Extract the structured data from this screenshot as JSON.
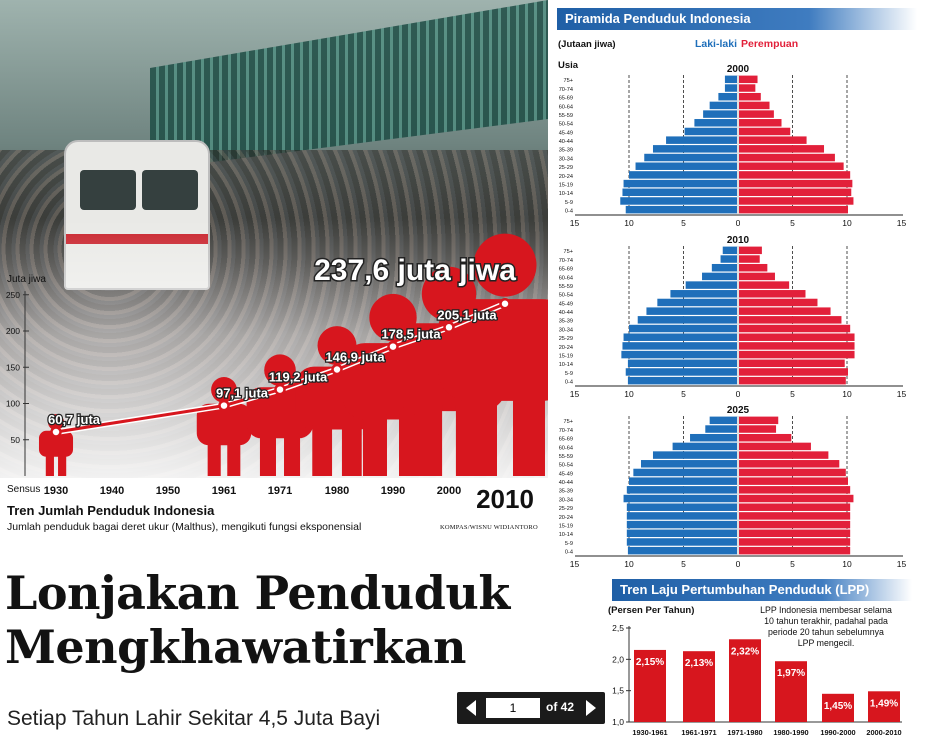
{
  "trend": {
    "total_label": "237,6 juta jiwa",
    "y_axis_label": "Juta jiwa",
    "x_axis_label": "Sensus",
    "title": "Tren Jumlah Penduduk Indonesia",
    "subtitle": "Jumlah penduduk bagai deret ukur (Malthus), mengikuti fungsi eksponensial",
    "credit": "KOMPAS/WISNU WIDIANTORO"
  },
  "headline": {
    "line1": "Lonjakan Penduduk",
    "line2": "Mengkhawatirkan",
    "deck": "Setiap Tahun Lahir Sekitar 4,5 Juta Bayi"
  },
  "pager": {
    "current": "1",
    "of_label": "of 42"
  },
  "pyramid": {
    "title": "Piramida Penduduk Indonesia",
    "unit": "(Jutaan jiwa)",
    "male_label": "Laki-laki",
    "female_label": "Perempuan",
    "age_label": "Usia"
  },
  "lpp": {
    "title": "Tren Laju Pertumbuhan Penduduk (LPP)",
    "unit": "(Persen Per Tahun)",
    "note": [
      "LPP Indonesia membesar selama",
      "10 tahun terakhir, padahal pada",
      "periode 20 tahun sebelumnya",
      "LPP mengecil."
    ]
  },
  "colors": {
    "red": "#d7161e",
    "blue": "#1f6fba",
    "pink": "#e2203a",
    "panel_blue": "#1f5fa6"
  },
  "chart_data": [
    {
      "type": "line",
      "title": "Tren Jumlah Penduduk Indonesia",
      "ylabel": "Juta jiwa",
      "xlabel": "Sensus",
      "x_ticks": [
        "1930",
        "1940",
        "1950",
        "1961",
        "1971",
        "1980",
        "1990",
        "2000",
        "2010"
      ],
      "y_ticks": [
        50,
        100,
        150,
        200,
        250
      ],
      "ylim": [
        0,
        250
      ],
      "series": [
        {
          "x": [
            1930,
            1961,
            1971,
            1980,
            1990,
            2000,
            2010
          ],
          "values": [
            60.7,
            97.1,
            119.2,
            146.9,
            178.5,
            205.1,
            237.6
          ],
          "labels": [
            "60,7 juta",
            "97,1 juta",
            "119,2 juta",
            "146,9 juta",
            "178,5 juta",
            "205,1 juta",
            "237,6 juta jiwa"
          ]
        }
      ]
    },
    {
      "type": "bar",
      "title": "Piramida Penduduk Indonesia",
      "ylabel": "Usia",
      "unit": "(Jutaan jiwa)",
      "x_ticks": [
        "15",
        "10",
        "5",
        "0",
        "5",
        "10",
        "15"
      ],
      "xlim": [
        -15,
        15
      ],
      "categories": [
        "0-4",
        "5-9",
        "10-14",
        "15-19",
        "20-24",
        "25-29",
        "30-34",
        "35-39",
        "40-44",
        "45-49",
        "50-54",
        "55-59",
        "60-64",
        "65-69",
        "70-74",
        "75+"
      ],
      "panels": [
        {
          "year": "2000",
          "series": [
            {
              "name": "Laki-laki",
              "values": [
                10.3,
                10.8,
                10.6,
                10.5,
                10.0,
                9.4,
                8.6,
                7.8,
                6.6,
                4.9,
                4.0,
                3.2,
                2.6,
                1.8,
                1.2,
                1.2
              ]
            },
            {
              "name": "Perempuan",
              "values": [
                10.0,
                10.5,
                10.3,
                10.4,
                10.2,
                9.6,
                8.8,
                7.8,
                6.2,
                4.7,
                3.9,
                3.2,
                2.8,
                2.0,
                1.5,
                1.7
              ]
            }
          ]
        },
        {
          "year": "2010",
          "series": [
            {
              "name": "Laki-laki",
              "values": [
                10.1,
                10.3,
                10.1,
                10.7,
                10.6,
                10.5,
                10.0,
                9.2,
                8.4,
                7.4,
                6.2,
                4.8,
                3.3,
                2.4,
                1.6,
                1.4
              ]
            },
            {
              "name": "Perempuan",
              "values": [
                9.8,
                10.0,
                9.7,
                10.6,
                10.6,
                10.6,
                10.2,
                9.4,
                8.4,
                7.2,
                6.1,
                4.6,
                3.3,
                2.6,
                1.9,
                2.1
              ]
            }
          ]
        },
        {
          "year": "2025",
          "series": [
            {
              "name": "Laki-laki",
              "values": [
                10.1,
                10.2,
                10.2,
                10.2,
                10.2,
                10.2,
                10.5,
                10.2,
                10.0,
                9.6,
                8.9,
                7.8,
                6.0,
                4.4,
                3.0,
                2.6
              ]
            },
            {
              "name": "Perempuan",
              "values": [
                10.2,
                10.2,
                10.2,
                10.2,
                10.2,
                10.2,
                10.5,
                10.2,
                10.0,
                9.8,
                9.2,
                8.2,
                6.6,
                4.8,
                3.4,
                3.6
              ]
            }
          ]
        }
      ]
    },
    {
      "type": "bar",
      "title": "Tren Laju Pertumbuhan Penduduk (LPP)",
      "ylabel": "(Persen Per Tahun)",
      "categories": [
        "1930-1961",
        "1961-1971",
        "1971-1980",
        "1980-1990",
        "1990-2000",
        "2000-2010"
      ],
      "values": [
        2.15,
        2.13,
        2.32,
        1.97,
        1.45,
        1.49
      ],
      "labels": [
        "2,15%",
        "2,13%",
        "2,32%",
        "1,97%",
        "1,45%",
        "1,49%"
      ],
      "y_ticks": [
        "1,0",
        "1,5",
        "2,0",
        "2,5"
      ],
      "ylim": [
        1.0,
        2.5
      ]
    }
  ]
}
